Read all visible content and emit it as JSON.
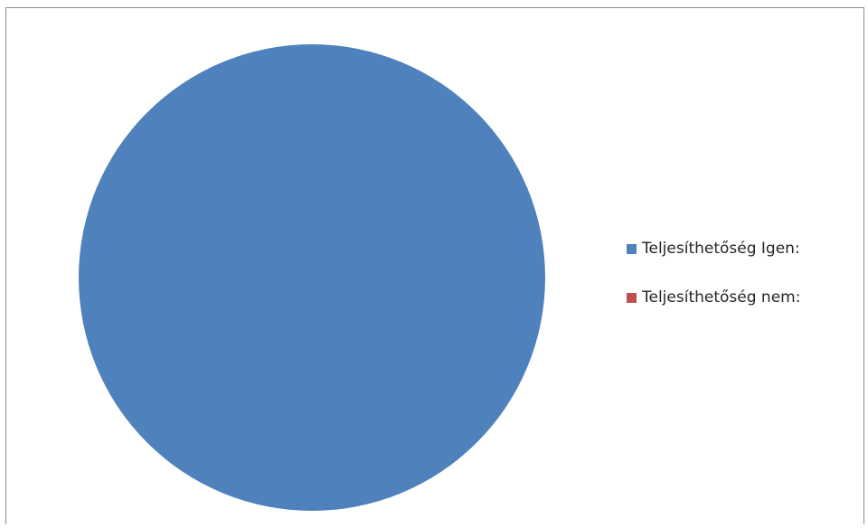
{
  "chart_data": {
    "type": "pie",
    "categories": [
      "Teljesíthetőség Igen:",
      "Teljesíthetőség nem:"
    ],
    "values": [
      100,
      0
    ],
    "colors": [
      "#4f81bd",
      "#c0504d"
    ],
    "legend_position": "right"
  }
}
